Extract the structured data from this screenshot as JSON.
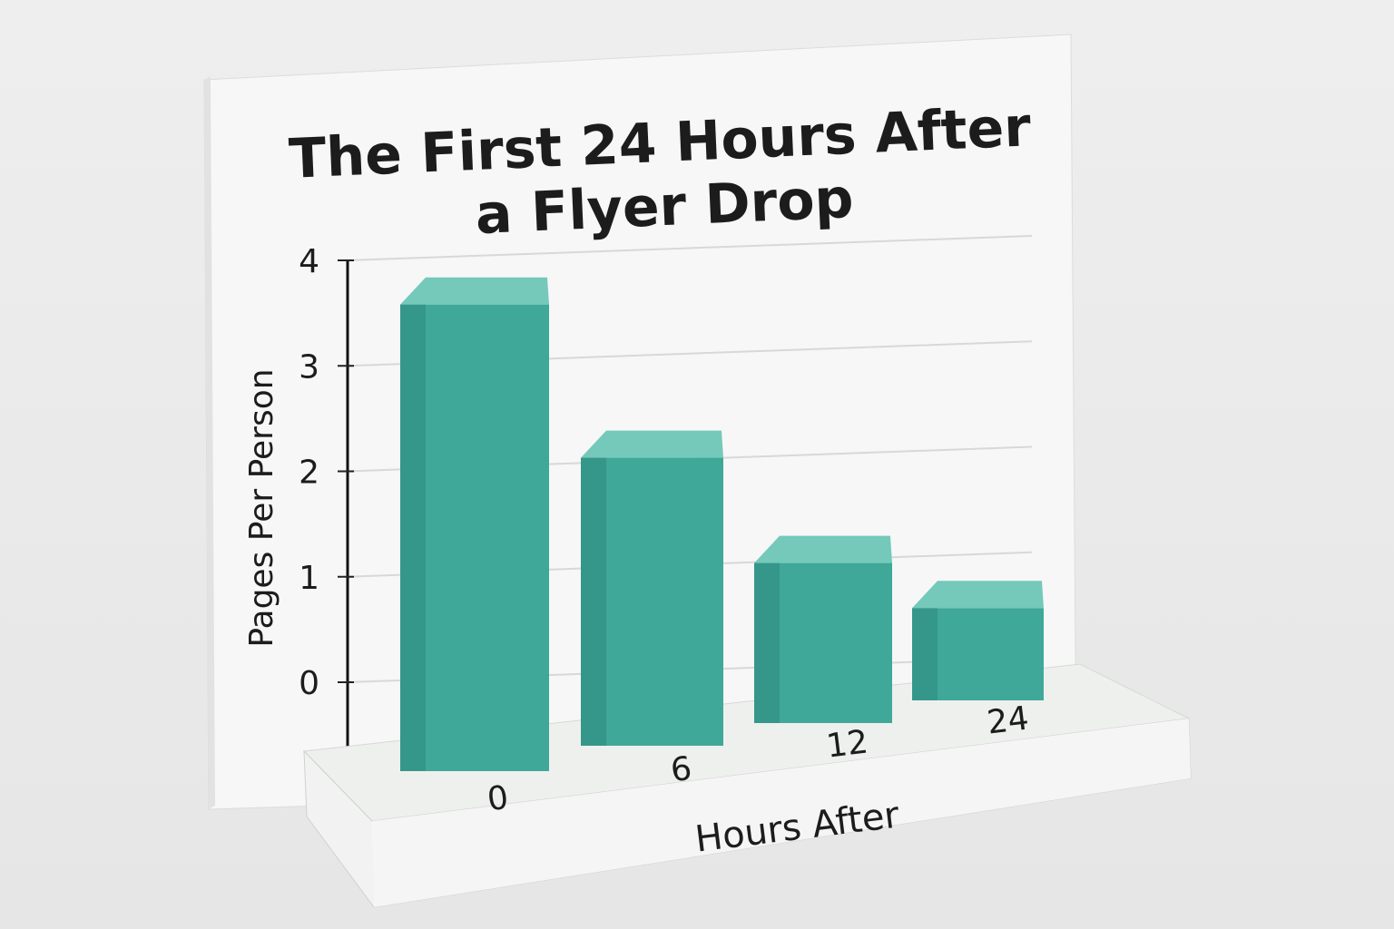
{
  "chart_data": {
    "type": "bar",
    "title_lines": [
      "The First 24 Hours After",
      "a Flyer Drop"
    ],
    "xlabel": "Hours After",
    "ylabel": "Pages Per Person",
    "categories": [
      "0",
      "6",
      "12",
      "24"
    ],
    "values": [
      3.7,
      2.3,
      1.4,
      0.9
    ],
    "yticks": [
      "0",
      "1",
      "2",
      "3",
      "4"
    ],
    "ylim": [
      0,
      4
    ],
    "grid": true,
    "style": "3d",
    "colors": {
      "bar_front": "#3fa898",
      "bar_top": "#74c9ba",
      "bar_side": "#2e8c7e"
    }
  }
}
